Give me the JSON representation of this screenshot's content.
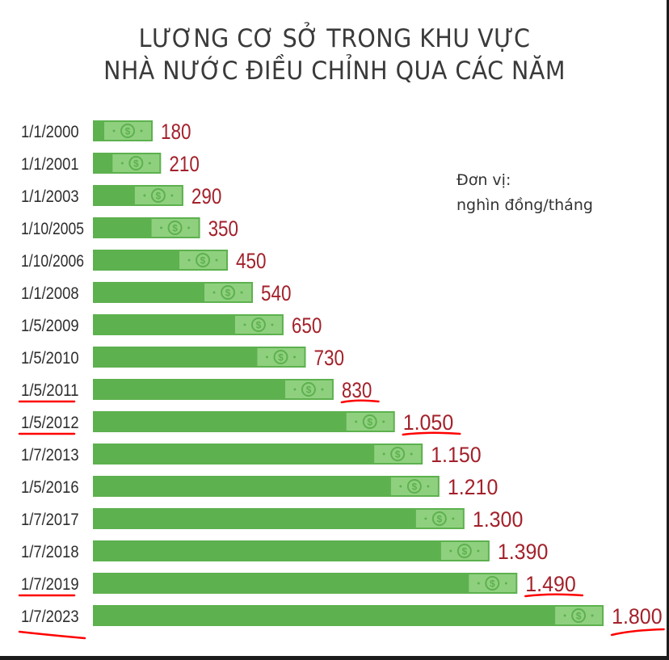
{
  "chart_data": {
    "type": "bar",
    "orientation": "horizontal",
    "title_lines": [
      "LƯƠNG CƠ SỞ TRONG KHU VỰC",
      "NHÀ NƯỚC ĐIỀU CHỈNH QUA CÁC NĂM"
    ],
    "unit_lines": [
      "Đơn vị:",
      "nghìn đồng/tháng"
    ],
    "categories": [
      "1/1/2000",
      "1/1/2001",
      "1/1/2003",
      "1/10/2005",
      "1/10/2006",
      "1/1/2008",
      "1/5/2009",
      "1/5/2010",
      "1/5/2011",
      "1/5/2012",
      "1/7/2013",
      "1/5/2016",
      "1/7/2017",
      "1/7/2018",
      "1/7/2019",
      "1/7/2023"
    ],
    "values": [
      180,
      210,
      290,
      350,
      450,
      540,
      650,
      730,
      830,
      1050,
      1150,
      1210,
      1300,
      1390,
      1490,
      1800
    ],
    "value_labels": [
      "180",
      "210",
      "290",
      "350",
      "450",
      "540",
      "650",
      "730",
      "830",
      "1.050",
      "1.150",
      "1.210",
      "1.300",
      "1.390",
      "1.490",
      "1.800"
    ],
    "highlighted_underlined": [
      "1/5/2011",
      "1/5/2012",
      "1/7/2019",
      "1/7/2023"
    ],
    "bar_icon": "dollar-banknote-icon",
    "colors": {
      "bar": "#5db14e",
      "banknote": "#8fd07f",
      "value_label": "#a3212b",
      "category_label": "#2d2d2d",
      "annotation": "#ff0000"
    }
  }
}
